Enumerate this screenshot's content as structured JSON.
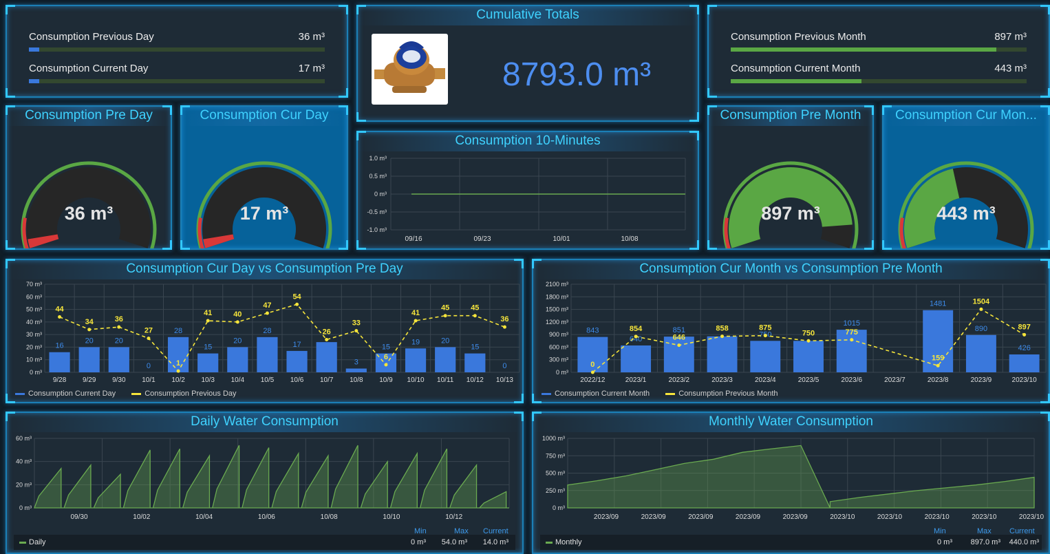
{
  "top_left": {
    "rows": [
      {
        "label": "Consumption Previous Day",
        "value": "36 m³",
        "fraction": 0.036
      },
      {
        "label": "Consumption Current Day",
        "value": "17 m³",
        "fraction": 0.017
      }
    ]
  },
  "cumulative": {
    "title": "Cumulative Totals",
    "value": "8793.0 m³",
    "image_icon": "water-meter-photo"
  },
  "top_right": {
    "rows": [
      {
        "label": "Consumption Previous Month",
        "value": "897 m³",
        "fraction": 0.897
      },
      {
        "label": "Consumption Current Month",
        "value": "443 m³",
        "fraction": 0.443
      }
    ]
  },
  "gauges": [
    {
      "title": "Consumption Pre Day",
      "value": "36 m³",
      "fraction": 0.036
    },
    {
      "title": "Consumption Cur Day",
      "value": "17 m³",
      "fraction": 0.017
    },
    {
      "title": "Consumption Pre Month",
      "value": "897 m³",
      "fraction": 0.897
    },
    {
      "title": "Consumption Cur Mon...",
      "value": "443 m³",
      "fraction": 0.443
    }
  ],
  "ten_min": {
    "title": "Consumption 10-Minutes",
    "yticks": [
      "1.0 m³",
      "0.5 m³",
      "0 m³",
      "-0.5 m³",
      "-1.0 m³"
    ],
    "xticks": [
      "09/16",
      "09/23",
      "10/01",
      "10/08"
    ]
  },
  "daily_compare": {
    "title": "Consumption Cur Day vs Consumption Pre Day",
    "legend": [
      "Consumption Current Day",
      "Consumption Previous Day"
    ]
  },
  "monthly_compare": {
    "title": "Consumption Cur Month vs Consumption Pre Month",
    "legend": [
      "Consumption Current Month",
      "Consumption Previous Month"
    ]
  },
  "daily_water": {
    "title": "Daily Water Consumption",
    "yticks": [
      "60 m³",
      "40 m³",
      "20 m³",
      "0 m³"
    ],
    "xticks": [
      "09/30",
      "10/02",
      "10/04",
      "10/06",
      "10/08",
      "10/10",
      "10/12"
    ],
    "stats_heads": [
      "Min",
      "Max",
      "Current"
    ],
    "series_name": "Daily",
    "stats_vals": [
      "0 m³",
      "54.0 m³",
      "14.0 m³"
    ]
  },
  "monthly_water": {
    "title": "Monthly Water Consumption",
    "yticks": [
      "1000 m³",
      "750 m³",
      "500 m³",
      "250 m³",
      "0 m³"
    ],
    "xticks": [
      "2023/09",
      "2023/09",
      "2023/09",
      "2023/09",
      "2023/09",
      "2023/10",
      "2023/10",
      "2023/10",
      "2023/10",
      "2023/10"
    ],
    "stats_heads": [
      "Min",
      "Max",
      "Current"
    ],
    "series_name": "Monthly",
    "stats_vals": [
      "0 m³",
      "897.0 m³",
      "440.0 m³"
    ]
  },
  "colors": {
    "bar": "#3a78dc",
    "line": "#f6e53b",
    "green": "#5aa744",
    "area": "#6aaa50",
    "red": "#d93838",
    "title": "#3fd2ff"
  },
  "chart_data": [
    {
      "type": "bar",
      "title": "Consumption Cur Day vs Consumption Pre Day",
      "categories": [
        "9/28",
        "9/29",
        "9/30",
        "10/1",
        "10/2",
        "10/3",
        "10/4",
        "10/5",
        "10/6",
        "10/7",
        "10/8",
        "10/9",
        "10/10",
        "10/11",
        "10/12",
        "10/13"
      ],
      "series": [
        {
          "name": "Consumption Current Day",
          "values": [
            16,
            20,
            20,
            0,
            28,
            15,
            20,
            28,
            17,
            24,
            3,
            15,
            19,
            20,
            15,
            0
          ]
        },
        {
          "name": "Consumption Previous Day",
          "values": [
            44,
            34,
            36,
            27,
            1,
            41,
            40,
            47,
            54,
            26,
            33,
            6,
            41,
            45,
            45,
            36
          ]
        }
      ],
      "bar_labels": [
        "16",
        "20",
        "20",
        "0",
        "28",
        "15",
        "20",
        "28",
        "17",
        "",
        "3",
        "15",
        "19",
        "20",
        "15",
        "0"
      ],
      "line_labels": [
        "44",
        "34",
        "36",
        "27",
        "1",
        "41",
        "40",
        "47",
        "54",
        "26",
        "33",
        "6",
        "41",
        "45",
        "45",
        "36"
      ],
      "yticks": [
        "70 m³",
        "60 m³",
        "50 m³",
        "40 m³",
        "30 m³",
        "20 m³",
        "10 m³",
        "0 m³"
      ],
      "ylim": [
        0,
        70
      ]
    },
    {
      "type": "bar",
      "title": "Consumption Cur Month vs Consumption Pre Month",
      "categories": [
        "2022/12",
        "2023/1",
        "2023/2",
        "2023/3",
        "2023/4",
        "2023/5",
        "2023/6",
        "2023/7",
        "2023/8",
        "2023/9",
        "2023/10"
      ],
      "series": [
        {
          "name": "Consumption Current Month",
          "values": [
            843,
            640,
            851,
            858,
            750,
            750,
            1015,
            0,
            1481,
            890,
            426
          ]
        },
        {
          "name": "Consumption Previous Month",
          "values": [
            0,
            854,
            646,
            858,
            875,
            750,
            775,
            null,
            159,
            1504,
            897
          ]
        }
      ],
      "bar_labels": [
        "843",
        "640",
        "851",
        "",
        "750",
        "",
        "1015",
        "",
        "1481",
        "890",
        "426"
      ],
      "line_labels": [
        "0",
        "854",
        "646",
        "858",
        "875",
        "750",
        "775",
        "",
        "159",
        "1504",
        "897"
      ],
      "yticks": [
        "2100 m³",
        "1800 m³",
        "1500 m³",
        "1200 m³",
        "900 m³",
        "600 m³",
        "300 m³",
        "0 m³"
      ],
      "ylim": [
        0,
        2100
      ]
    },
    {
      "type": "area",
      "title": "Daily Water Consumption",
      "series": [
        {
          "name": "Daily",
          "sawtooth_peaks": [
            34,
            37,
            29,
            50,
            51,
            45,
            54,
            52,
            47,
            45,
            54,
            40,
            47,
            51,
            37,
            14
          ]
        }
      ],
      "ylim": [
        0,
        60
      ]
    },
    {
      "type": "area",
      "title": "Monthly Water Consumption",
      "series": [
        {
          "name": "Monthly",
          "values": [
            330,
            390,
            460,
            550,
            640,
            700,
            800,
            850,
            897,
            0,
            90,
            150,
            200,
            250,
            290,
            330,
            380,
            440
          ]
        }
      ],
      "ylim": [
        0,
        1000
      ]
    }
  ]
}
